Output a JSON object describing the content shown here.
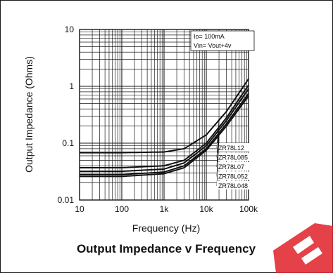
{
  "chart_data": {
    "type": "line",
    "title": "Output Impedance v Frequency",
    "xlabel": "Frequency (Hz)",
    "ylabel": "Output Impedance (Ohms)",
    "x_scale": "log",
    "y_scale": "log",
    "xlim": [
      10,
      100000
    ],
    "ylim": [
      0.01,
      10
    ],
    "grid": true,
    "x_ticks": [
      "10",
      "100",
      "1k",
      "10k",
      "100k"
    ],
    "y_ticks": [
      "0.01",
      "0.1",
      "1",
      "10"
    ],
    "annotations": [
      "Io= 100mA",
      "Vin= Vout+4v"
    ],
    "x": [
      10,
      100,
      1000,
      3000,
      10000,
      30000,
      100000
    ],
    "series": [
      {
        "name": "ZR78L12",
        "values": [
          0.068,
          0.068,
          0.07,
          0.08,
          0.14,
          0.36,
          1.35
        ]
      },
      {
        "name": "ZR78L085",
        "values": [
          0.037,
          0.037,
          0.04,
          0.05,
          0.1,
          0.28,
          1.05
        ]
      },
      {
        "name": "ZR78L07",
        "values": [
          0.032,
          0.032,
          0.035,
          0.045,
          0.09,
          0.25,
          0.9
        ]
      },
      {
        "name": "ZR78L052",
        "values": [
          0.028,
          0.028,
          0.031,
          0.04,
          0.08,
          0.22,
          0.75
        ]
      },
      {
        "name": "ZR78L048",
        "values": [
          0.026,
          0.026,
          0.029,
          0.037,
          0.075,
          0.2,
          0.68
        ]
      }
    ],
    "colors": {
      "line": "#111111",
      "grid": "#1a1a1a",
      "watermark": "#e0202a"
    }
  }
}
